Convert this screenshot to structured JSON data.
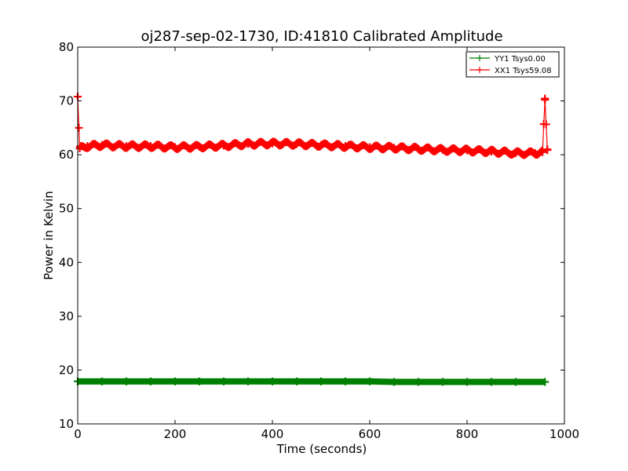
{
  "chart_data": {
    "type": "line",
    "title": "oj287-sep-02-1730, ID:41810 Calibrated Amplitude",
    "xlabel": "Time (seconds)",
    "ylabel": "Power in Kelvin",
    "xlim": [
      0,
      1000
    ],
    "ylim": [
      10,
      80
    ],
    "xticks": [
      0,
      200,
      400,
      600,
      800,
      1000
    ],
    "yticks": [
      10,
      20,
      30,
      40,
      50,
      60,
      70,
      80
    ],
    "grid": false,
    "legend_position": "top-right",
    "series": [
      {
        "name": "YY1 Tsys0.00",
        "color": "#008000",
        "x": [
          0,
          50,
          100,
          150,
          200,
          250,
          300,
          350,
          400,
          450,
          500,
          550,
          600,
          650,
          700,
          750,
          800,
          850,
          900,
          960
        ],
        "y": [
          17.9,
          17.9,
          17.9,
          17.9,
          17.9,
          17.9,
          17.9,
          17.9,
          17.9,
          17.9,
          17.9,
          17.9,
          17.9,
          17.8,
          17.8,
          17.8,
          17.8,
          17.8,
          17.8,
          17.8
        ]
      },
      {
        "name": "XX1 Tsys59.08",
        "color": "#ff0000",
        "x": [
          0,
          4,
          20,
          50,
          100,
          150,
          200,
          250,
          300,
          350,
          400,
          450,
          500,
          550,
          600,
          650,
          700,
          750,
          800,
          850,
          900,
          940,
          955,
          960,
          965
        ],
        "y": [
          70.8,
          61.2,
          61.6,
          61.8,
          61.6,
          61.6,
          61.4,
          61.5,
          61.7,
          62.0,
          62.1,
          62.0,
          61.8,
          61.6,
          61.4,
          61.3,
          61.1,
          60.9,
          60.8,
          60.6,
          60.3,
          60.3,
          60.5,
          70.2,
          61.0
        ]
      }
    ]
  }
}
